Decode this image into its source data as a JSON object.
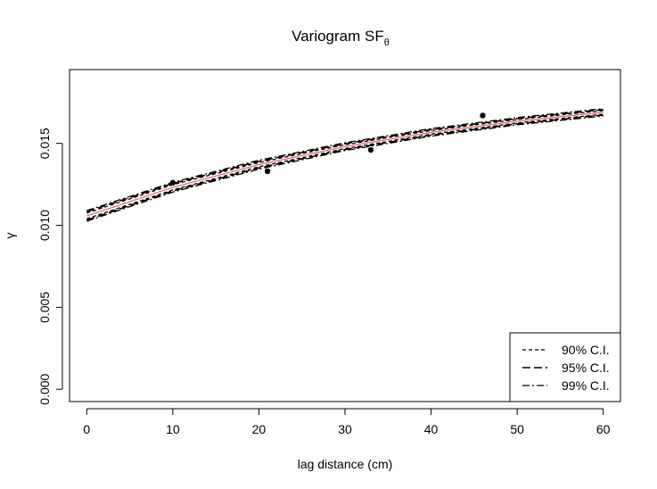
{
  "chart_data": {
    "type": "line",
    "title": "Variogram SF",
    "title_subscript": "θ",
    "xlabel": "lag distance (cm)",
    "ylabel": "γ",
    "xlim": [
      -2,
      62
    ],
    "ylim": [
      -0.00075,
      0.0195
    ],
    "xticks": [
      0,
      10,
      20,
      30,
      40,
      50,
      60
    ],
    "xtick_labels": [
      "0",
      "10",
      "20",
      "30",
      "40",
      "50",
      "60"
    ],
    "yticks": [
      0.0,
      0.005,
      0.01,
      0.015
    ],
    "ytick_labels": [
      "0.000",
      "0.005",
      "0.010",
      "0.015"
    ],
    "grid": false,
    "legend_position": "bottom-right",
    "points": {
      "x": [
        10,
        21,
        33,
        46
      ],
      "y": [
        0.0126,
        0.0133,
        0.0146,
        0.0167
      ]
    },
    "fit_curve": {
      "x": [
        0,
        10,
        20,
        30,
        40,
        50,
        60
      ],
      "y": [
        0.01057,
        0.01232,
        0.0137,
        0.0148,
        0.01567,
        0.01635,
        0.01689
      ],
      "color": "#e06666"
    },
    "series": [
      {
        "name": "90% C.I.",
        "dash": "4,3",
        "stroke_width": 1.3,
        "x": [
          0,
          10,
          20,
          30,
          40,
          50,
          60
        ],
        "upper": [
          0.01075,
          0.01248,
          0.01383,
          0.01492,
          0.01578,
          0.01646,
          0.017
        ],
        "lower": [
          0.0104,
          0.01216,
          0.01357,
          0.01468,
          0.01556,
          0.01624,
          0.01678
        ]
      },
      {
        "name": "95% C.I.",
        "dash": "9,4",
        "stroke_width": 1.6,
        "x": [
          0,
          10,
          20,
          30,
          40,
          50,
          60
        ],
        "upper": [
          0.01083,
          0.01255,
          0.0139,
          0.01498,
          0.01584,
          0.01651,
          0.01706
        ],
        "lower": [
          0.01032,
          0.0121,
          0.0135,
          0.01462,
          0.0155,
          0.01619,
          0.01673
        ]
      },
      {
        "name": "99% C.I.",
        "dash": "8,3,2,3",
        "stroke_width": 1.3,
        "x": [
          0,
          10,
          20,
          30,
          40,
          50,
          60
        ],
        "upper": [
          0.0109,
          0.01262,
          0.01397,
          0.01504,
          0.0159,
          0.01657,
          0.01712
        ],
        "lower": [
          0.01025,
          0.01203,
          0.01343,
          0.01456,
          0.01544,
          0.01613,
          0.01667
        ]
      }
    ]
  }
}
